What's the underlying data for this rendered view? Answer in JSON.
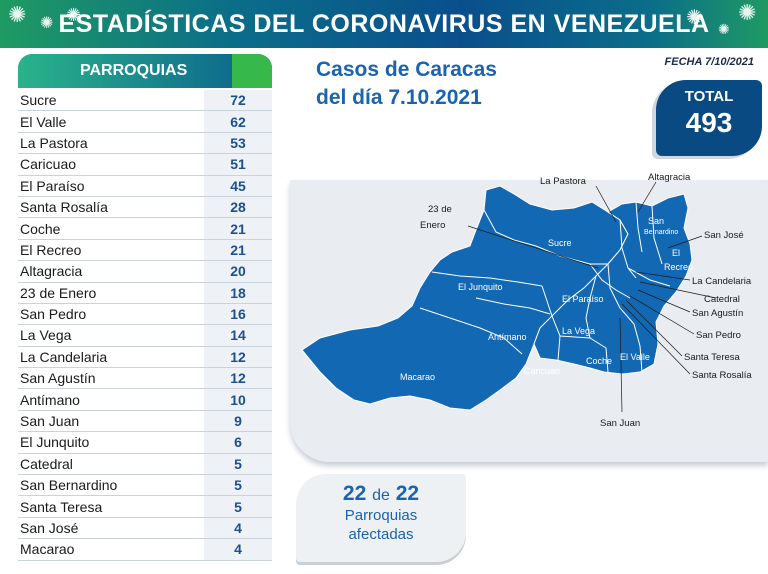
{
  "banner": {
    "title": "ESTADÍSTICAS DEL CORONAVIRUS EN VENEZUELA"
  },
  "fecha": "FECHA 7/10/2021",
  "table": {
    "header": "PARROQUIAS",
    "rows": [
      {
        "name": "Sucre",
        "value": "72"
      },
      {
        "name": "El Valle",
        "value": "62"
      },
      {
        "name": "La Pastora",
        "value": "53"
      },
      {
        "name": "Caricuao",
        "value": "51"
      },
      {
        "name": "El Paraíso",
        "value": "45"
      },
      {
        "name": "Santa Rosalía",
        "value": "28"
      },
      {
        "name": "Coche",
        "value": "21"
      },
      {
        "name": "El Recreo",
        "value": "21"
      },
      {
        "name": "Altagracia",
        "value": "20"
      },
      {
        "name": "23 de Enero",
        "value": "18"
      },
      {
        "name": "San Pedro",
        "value": "16"
      },
      {
        "name": "La Vega",
        "value": "14"
      },
      {
        "name": "La Candelaria",
        "value": "12"
      },
      {
        "name": "San Agustín",
        "value": "12"
      },
      {
        "name": "Antímano",
        "value": "10"
      },
      {
        "name": "San Juan",
        "value": "9"
      },
      {
        "name": "El Junquito",
        "value": "6"
      },
      {
        "name": "Catedral",
        "value": "5"
      },
      {
        "name": "San Bernardino",
        "value": "5"
      },
      {
        "name": "Santa Teresa",
        "value": "5"
      },
      {
        "name": "San José",
        "value": "4"
      },
      {
        "name": "Macarao",
        "value": "4"
      }
    ]
  },
  "caracas": {
    "line1": "Casos de Caracas",
    "line2": "del día 7.10.2021"
  },
  "total": {
    "label": "TOTAL",
    "value": "493"
  },
  "afectadas": {
    "count": "22",
    "of_word": "de",
    "of_total": "22",
    "line1": "Parroquias",
    "line2": "afectadas"
  },
  "map": {
    "outer_labels": {
      "la_pastora": "La Pastora",
      "altagracia": "Altagracia",
      "enero_1": "23 de",
      "enero_2": "Enero",
      "san_jose": "San José",
      "la_candelaria": "La Candelaria",
      "catedral": "Catedral",
      "san_agustin": "San Agustín",
      "san_pedro": "San Pedro",
      "santa_teresa": "Santa Teresa",
      "santa_rosalia": "Santa Rosalía",
      "san_juan": "San Juan"
    },
    "inner_labels": {
      "sucre": "Sucre",
      "el_junquito": "El Junquito",
      "el_paraiso": "El Paraíso",
      "la_vega": "La Vega",
      "antimano": "Antímano",
      "macarao": "Macarao",
      "caricuao": "Caricuao",
      "coche": "Coche",
      "el_valle": "El Valle",
      "san": "San",
      "bernardino": "Bernardino",
      "el": "El",
      "recreo": "Recreo"
    },
    "fill_color": "#1268b3"
  },
  "colors": {
    "banner_blue": "#0a4f8c",
    "accent_green": "#1f9a63",
    "title_blue": "#1a63b0",
    "total_bg": "#0a4a82"
  }
}
